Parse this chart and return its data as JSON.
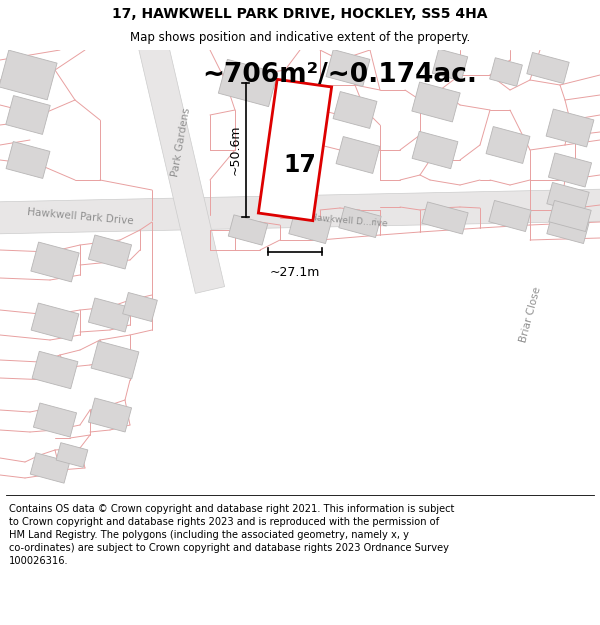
{
  "title_line1": "17, HAWKWELL PARK DRIVE, HOCKLEY, SS5 4HA",
  "title_line2": "Map shows position and indicative extent of the property.",
  "area_text": "~706m²/~0.174ac.",
  "property_number": "17",
  "dim_width": "~27.1m",
  "dim_height": "~50.6m",
  "footer_text": "Contains OS data © Crown copyright and database right 2021. This information is subject to Crown copyright and database rights 2023 and is reproduced with the permission of HM Land Registry. The polygons (including the associated geometry, namely x, y co-ordinates) are subject to Crown copyright and database rights 2023 Ordnance Survey 100026316.",
  "bg_color": "#ffffff",
  "map_bg": "#ffffff",
  "road_fill": "#e8e6e6",
  "plot_line_color": "#dd0000",
  "street_label_color": "#909090",
  "building_fill": "#d8d6d6",
  "building_edge": "#b8b6b6",
  "pink_line_color": "#e8a0a0",
  "road_edge": "#cccccc"
}
